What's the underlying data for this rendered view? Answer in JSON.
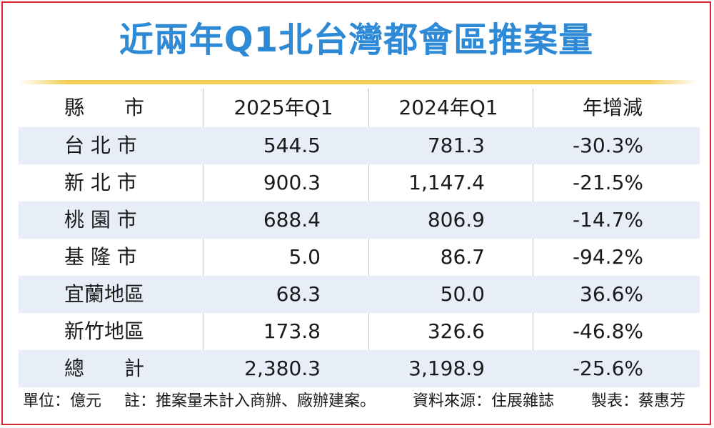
{
  "title": "近兩年Q1北台灣都會區推案量",
  "table": {
    "headers": {
      "name": "縣　　市",
      "y2025": "2025年Q1",
      "y2024": "2024年Q1",
      "change": "年增減"
    },
    "rows": [
      {
        "name": "台 北 市",
        "y2025": "544.5",
        "y2024": "781.3",
        "change": "-30.3%"
      },
      {
        "name": "新 北 市",
        "y2025": "900.3",
        "y2024": "1,147.4",
        "change": "-21.5%"
      },
      {
        "name": "桃 園 市",
        "y2025": "688.4",
        "y2024": "806.9",
        "change": "-14.7%"
      },
      {
        "name": "基 隆 市",
        "y2025": "5.0",
        "y2024": "86.7",
        "change": "-94.2%"
      },
      {
        "name": "宜蘭地區",
        "y2025": "68.3",
        "y2024": "50.0",
        "change": "36.6%"
      },
      {
        "name": "新竹地區",
        "y2025": "173.8",
        "y2024": "326.6",
        "change": "-46.8%"
      },
      {
        "name": "總　　計",
        "y2025": "2,380.3",
        "y2024": "3,198.9",
        "change": "-25.6%"
      }
    ]
  },
  "footer": {
    "unit": "單位：億元",
    "note": "註：推案量未計入商辦、廠辦建案。",
    "source": "資料來源：住展雜誌",
    "author": "製表：蔡惠芳"
  },
  "colors": {
    "title": "#2e8ad6",
    "border": "#d9262e",
    "rule": "#f2ce58",
    "shade": "#e8eef8"
  }
}
